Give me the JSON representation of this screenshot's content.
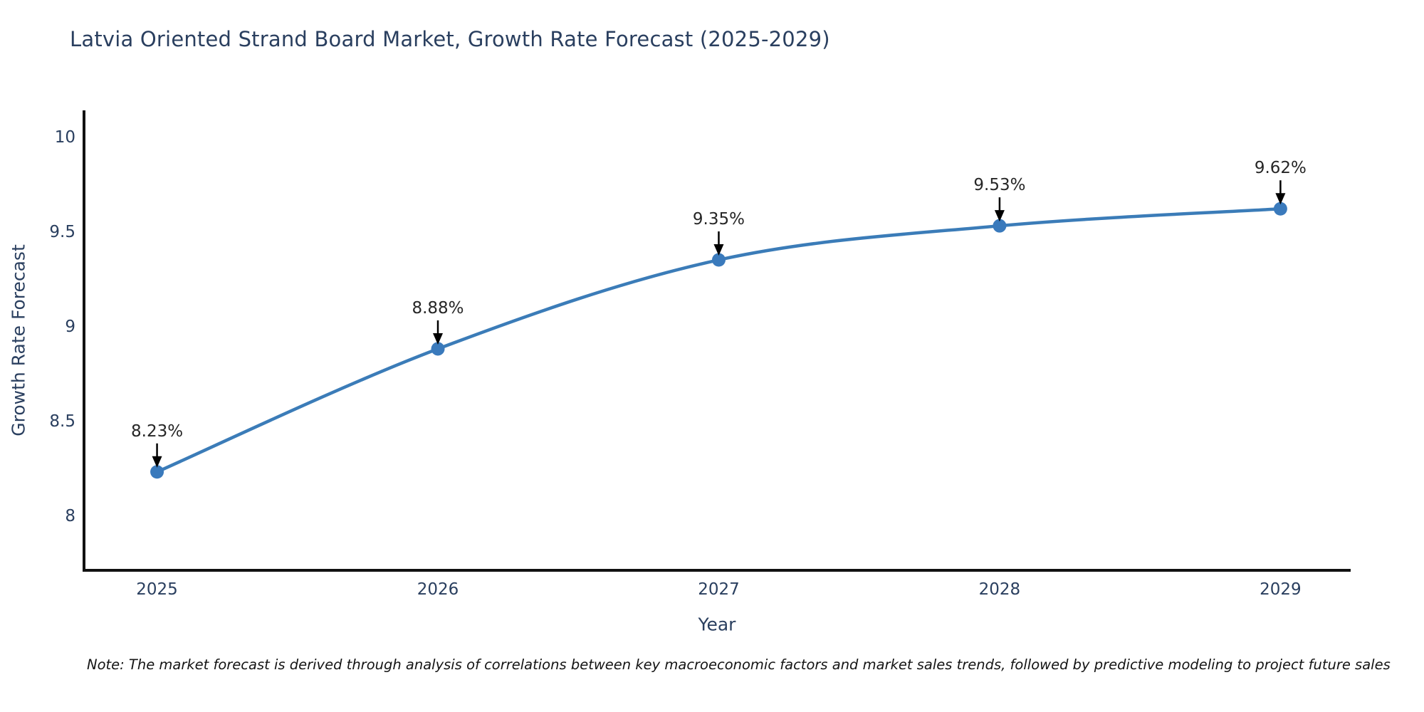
{
  "chart_data": {
    "type": "line",
    "title": "Latvia Oriented Strand Board Market, Growth Rate Forecast (2025-2029)",
    "xlabel": "Year",
    "ylabel": "Growth Rate Forecast",
    "x": [
      2025,
      2026,
      2027,
      2028,
      2029
    ],
    "values": [
      8.23,
      8.88,
      9.35,
      9.53,
      9.62
    ],
    "point_labels": [
      "8.23%",
      "8.88%",
      "9.35%",
      "9.53%",
      "9.62%"
    ],
    "xticks": [
      2025,
      2026,
      2027,
      2028,
      2029
    ],
    "xtick_labels": [
      "2025",
      "2026",
      "2027",
      "2028",
      "2029"
    ],
    "yticks": [
      8,
      8.5,
      9,
      9.5,
      10
    ],
    "ytick_labels": [
      "8",
      "8.5",
      "9",
      "9.5",
      "10"
    ],
    "xlim": [
      2024.74,
      2029.25
    ],
    "ylim": [
      7.71,
      10.14
    ],
    "grid": false,
    "legend": "none",
    "note": "Note: The market forecast is derived through analysis of correlations between key macroeconomic factors and market sales trends, followed by predictive modeling to project future sales",
    "colors": {
      "line": "#3b7cb8",
      "marker": "#3a7abc",
      "axis": "#111111",
      "tick_text": "#2a3f5f",
      "annotation_text": "#262626",
      "arrow": "#000000",
      "title_text": "#2a3f5f",
      "background": "#ffffff"
    }
  }
}
